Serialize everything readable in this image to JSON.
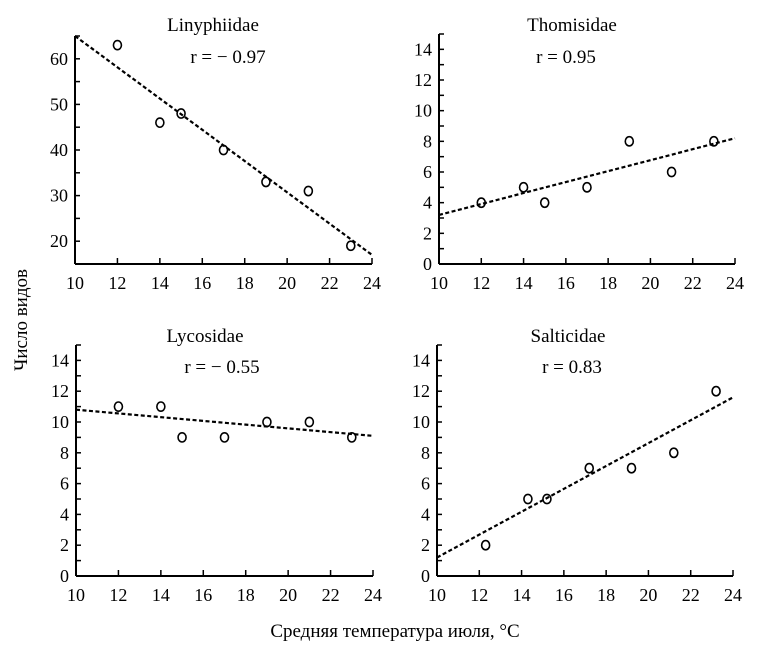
{
  "chart_data": [
    {
      "type": "scatter",
      "title": "Linyphiidae",
      "annotation": "r = − 0.97",
      "xlim": [
        10,
        24
      ],
      "ylim": [
        15,
        65
      ],
      "xticks": [
        10,
        12,
        14,
        16,
        18,
        20,
        22,
        24
      ],
      "yticks": [
        20,
        30,
        40,
        50,
        60
      ],
      "points": [
        [
          12,
          63
        ],
        [
          14,
          46
        ],
        [
          15,
          48
        ],
        [
          17,
          40
        ],
        [
          19,
          33
        ],
        [
          21,
          31
        ],
        [
          23,
          19
        ]
      ],
      "trendline": [
        [
          10,
          65
        ],
        [
          24,
          17
        ]
      ]
    },
    {
      "type": "scatter",
      "title": "Thomisidae",
      "annotation": "r = 0.95",
      "xlim": [
        10,
        24
      ],
      "ylim": [
        0,
        15
      ],
      "xticks": [
        10,
        12,
        14,
        16,
        18,
        20,
        22,
        24
      ],
      "yticks": [
        0,
        2,
        4,
        6,
        8,
        10,
        12,
        14
      ],
      "points": [
        [
          12,
          4
        ],
        [
          14,
          5
        ],
        [
          15,
          4
        ],
        [
          17,
          5
        ],
        [
          19,
          8
        ],
        [
          21,
          6
        ],
        [
          23,
          8
        ]
      ],
      "trendline": [
        [
          10,
          3.2
        ],
        [
          24,
          8.2
        ]
      ]
    },
    {
      "type": "scatter",
      "title": "Lycosidae",
      "annotation": "r = − 0.55",
      "xlim": [
        10,
        24
      ],
      "ylim": [
        0,
        15
      ],
      "xticks": [
        10,
        12,
        14,
        16,
        18,
        20,
        22,
        24
      ],
      "yticks": [
        0,
        2,
        4,
        6,
        8,
        10,
        12,
        14
      ],
      "points": [
        [
          12,
          11
        ],
        [
          14,
          11
        ],
        [
          15,
          9
        ],
        [
          17,
          9
        ],
        [
          19,
          10
        ],
        [
          21,
          10
        ],
        [
          23,
          9
        ]
      ],
      "trendline": [
        [
          10,
          10.8
        ],
        [
          24,
          9.1
        ]
      ]
    },
    {
      "type": "scatter",
      "title": "Salticidae",
      "annotation": "r = 0.83",
      "xlim": [
        10,
        24
      ],
      "ylim": [
        0,
        15
      ],
      "xticks": [
        10,
        12,
        14,
        16,
        18,
        20,
        22,
        24
      ],
      "yticks": [
        0,
        2,
        4,
        6,
        8,
        10,
        12,
        14
      ],
      "points": [
        [
          12.3,
          2
        ],
        [
          14.3,
          5
        ],
        [
          15.2,
          5
        ],
        [
          17.2,
          7
        ],
        [
          19.2,
          7
        ],
        [
          21.2,
          8
        ],
        [
          23.2,
          12
        ]
      ],
      "trendline": [
        [
          10,
          1.2
        ],
        [
          24,
          11.6
        ]
      ]
    }
  ],
  "ylabel": "Число видов",
  "xlabel": "Средняя температура июля, °C"
}
